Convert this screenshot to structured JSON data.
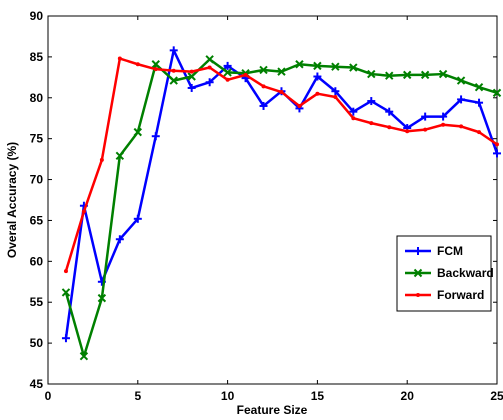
{
  "chart_data": {
    "type": "line",
    "title": "",
    "xlabel": "Feature Size",
    "ylabel": "Overal Accuracy (%)",
    "xlim": [
      0,
      25
    ],
    "ylim": [
      45,
      90
    ],
    "xticks": [
      0,
      5,
      10,
      15,
      20,
      25
    ],
    "yticks": [
      45,
      50,
      55,
      60,
      65,
      70,
      75,
      80,
      85,
      90
    ],
    "grid": false,
    "legend_position": "right",
    "x": [
      1,
      2,
      3,
      4,
      5,
      6,
      7,
      8,
      9,
      10,
      11,
      12,
      13,
      14,
      15,
      16,
      17,
      18,
      19,
      20,
      21,
      22,
      23,
      24,
      25
    ],
    "series": [
      {
        "name": "FCM",
        "color": "#0000ff",
        "marker": "plus",
        "values": [
          50.6,
          66.8,
          57.5,
          62.7,
          65.2,
          75.3,
          85.8,
          81.2,
          81.9,
          83.9,
          82.4,
          79.0,
          80.8,
          78.7,
          82.6,
          80.8,
          78.3,
          79.6,
          78.3,
          76.3,
          77.7,
          77.7,
          79.8,
          79.4,
          73.2
        ]
      },
      {
        "name": "Backward",
        "color": "#008000",
        "marker": "x",
        "values": [
          56.2,
          48.4,
          55.5,
          72.9,
          75.8,
          84.1,
          82.1,
          82.6,
          84.7,
          83.1,
          83.0,
          83.4,
          83.2,
          84.1,
          83.9,
          83.8,
          83.7,
          82.9,
          82.7,
          82.8,
          82.8,
          82.9,
          82.1,
          81.3,
          80.6
        ]
      },
      {
        "name": "Forward",
        "color": "#ff0000",
        "marker": "dot",
        "values": [
          58.8,
          66.1,
          72.4,
          84.8,
          84.1,
          83.5,
          83.3,
          83.2,
          83.7,
          82.2,
          82.8,
          81.4,
          80.7,
          79.0,
          80.5,
          80.1,
          77.5,
          76.9,
          76.4,
          75.9,
          76.1,
          76.7,
          76.5,
          75.8,
          74.3
        ]
      }
    ]
  }
}
